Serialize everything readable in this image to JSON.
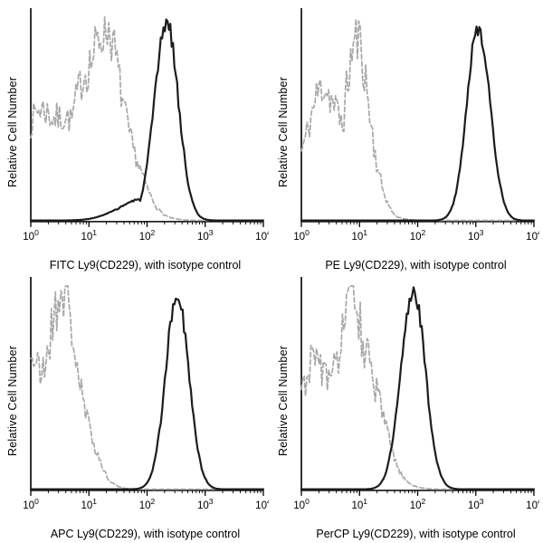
{
  "colors": {
    "background": "#ffffff",
    "axis": "#000000",
    "stain": "#1c1c1c",
    "isotype": "#a8a8a8"
  },
  "chart_data": [
    {
      "type": "area",
      "subtype": "flow-cytometry-histogram",
      "position": "top-left",
      "xlabel": "FITC Ly9(CD229),  with isotype control",
      "ylabel": "Relative Cell Number",
      "x_scale": "log10",
      "x_range": [
        1,
        10000
      ],
      "x_ticks": [
        "10^0",
        "10^1",
        "10^2",
        "10^3",
        "10^4"
      ],
      "grid": false,
      "legend": false,
      "series": [
        {
          "name": "isotype control",
          "role": "isotype",
          "style": "dashed",
          "color": "#a8a8a8",
          "seed": 7,
          "noise": 0.15,
          "peak_x_approx": 16,
          "peak_height_rel": 0.92,
          "log_peaks": [
            {
              "center": 1.2,
              "width": 0.42,
              "height": 0.92
            },
            {
              "center": 0.35,
              "width": 0.55,
              "height": 0.55
            }
          ]
        },
        {
          "name": "FITC Ly9(CD229)",
          "role": "stain",
          "style": "solid",
          "color": "#1c1c1c",
          "seed": 3,
          "noise": 0.05,
          "peak_x_approx": 210,
          "peak_height_rel": 0.96,
          "log_peaks": [
            {
              "center": 2.33,
              "width": 0.21,
              "height": 0.96
            },
            {
              "center": 1.9,
              "width": 0.4,
              "height": 0.1
            }
          ]
        }
      ]
    },
    {
      "type": "area",
      "subtype": "flow-cytometry-histogram",
      "position": "top-right",
      "xlabel": "PE Ly9(CD229),  with isotype control",
      "ylabel": "Relative Cell Number",
      "x_scale": "log10",
      "x_range": [
        1,
        10000
      ],
      "x_ticks": [
        "10^0",
        "10^1",
        "10^2",
        "10^3",
        "10^4"
      ],
      "grid": false,
      "legend": false,
      "series": [
        {
          "name": "isotype control",
          "role": "isotype",
          "style": "dashed",
          "color": "#a8a8a8",
          "seed": 11,
          "noise": 0.17,
          "peak_x_approx": 9,
          "peak_height_rel": 0.85,
          "log_peaks": [
            {
              "center": 0.95,
              "width": 0.25,
              "height": 0.82
            },
            {
              "center": 0.45,
              "width": 0.45,
              "height": 0.62
            }
          ]
        },
        {
          "name": "PE Ly9(CD229)",
          "role": "stain",
          "style": "solid",
          "color": "#1c1c1c",
          "seed": 5,
          "noise": 0.04,
          "peak_x_approx": 1100,
          "peak_height_rel": 0.95,
          "log_peaks": [
            {
              "center": 3.05,
              "width": 0.2,
              "height": 0.95
            }
          ]
        }
      ]
    },
    {
      "type": "area",
      "subtype": "flow-cytometry-histogram",
      "position": "bottom-left",
      "xlabel": "APC Ly9(CD229), with isotype control",
      "ylabel": "Relative Cell Number",
      "x_scale": "log10",
      "x_range": [
        1,
        10000
      ],
      "x_ticks": [
        "10^0",
        "10^1",
        "10^2",
        "10^3",
        "10^4"
      ],
      "grid": false,
      "legend": false,
      "series": [
        {
          "name": "isotype control",
          "role": "isotype",
          "style": "dashed",
          "color": "#a8a8a8",
          "seed": 21,
          "noise": 0.16,
          "peak_x_approx": 3,
          "peak_height_rel": 0.9,
          "log_peaks": [
            {
              "center": 0.5,
              "width": 0.35,
              "height": 0.9
            },
            {
              "center": 0.05,
              "width": 0.3,
              "height": 0.62
            }
          ]
        },
        {
          "name": "APC Ly9(CD229)",
          "role": "stain",
          "style": "solid",
          "color": "#1c1c1c",
          "seed": 9,
          "noise": 0.05,
          "peak_x_approx": 330,
          "peak_height_rel": 0.95,
          "log_peaks": [
            {
              "center": 2.52,
              "width": 0.2,
              "height": 0.95
            }
          ]
        }
      ]
    },
    {
      "type": "area",
      "subtype": "flow-cytometry-histogram",
      "position": "bottom-right",
      "xlabel": "PerCP Ly9(CD229), with isotype control",
      "ylabel": "Relative Cell Number",
      "x_scale": "log10",
      "x_range": [
        1,
        10000
      ],
      "x_ticks": [
        "10^0",
        "10^1",
        "10^2",
        "10^3",
        "10^4"
      ],
      "grid": false,
      "legend": false,
      "series": [
        {
          "name": "isotype control",
          "role": "isotype",
          "style": "dashed",
          "color": "#a8a8a8",
          "seed": 31,
          "noise": 0.17,
          "peak_x_approx": 8,
          "peak_height_rel": 0.9,
          "log_peaks": [
            {
              "center": 0.88,
              "width": 0.38,
              "height": 0.88
            },
            {
              "center": 0.3,
              "width": 0.45,
              "height": 0.6
            }
          ]
        },
        {
          "name": "PerCP Ly9(CD229)",
          "role": "stain",
          "style": "solid",
          "color": "#1c1c1c",
          "seed": 13,
          "noise": 0.05,
          "peak_x_approx": 80,
          "peak_height_rel": 0.97,
          "log_peaks": [
            {
              "center": 1.92,
              "width": 0.21,
              "height": 0.97
            }
          ]
        }
      ]
    }
  ]
}
